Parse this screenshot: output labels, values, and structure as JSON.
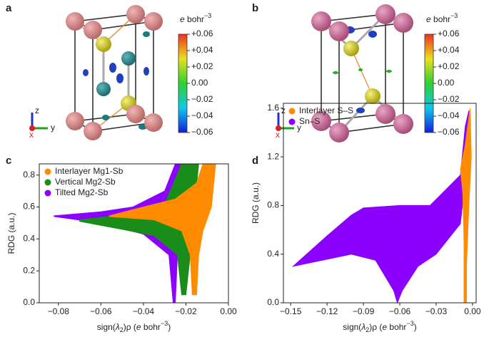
{
  "panels": [
    {
      "label": "a",
      "axes": [
        "z",
        "x",
        "y"
      ],
      "colorbar": {
        "unit_symbol": "e",
        "unit": " bohr",
        "unit_exponent": "−3",
        "lim": [
          -0.06,
          0.06
        ],
        "ticks": [
          {
            "value": 0.06,
            "label": "+0.06"
          },
          {
            "value": 0.04,
            "label": "+0.04"
          },
          {
            "value": 0.02,
            "label": "+0.02"
          },
          {
            "value": 0,
            "label": "0.00"
          },
          {
            "value": -0.02,
            "label": "−0.02"
          },
          {
            "value": -0.04,
            "label": "−0.04"
          },
          {
            "value": -0.06,
            "label": "−0.06"
          }
        ]
      }
    },
    {
      "label": "b",
      "axes": [
        "z",
        "x",
        "y"
      ],
      "colorbar": {
        "unit_symbol": "e",
        "unit": " bohr",
        "unit_exponent": "−3",
        "lim": [
          -0.06,
          0.06
        ],
        "ticks": [
          {
            "value": 0.06,
            "label": "+0.06"
          },
          {
            "value": 0.04,
            "label": "+0.04"
          },
          {
            "value": 0.02,
            "label": "+0.02"
          },
          {
            "value": 0,
            "label": "0.00"
          },
          {
            "value": -0.02,
            "label": "−0.02"
          },
          {
            "value": -0.04,
            "label": "−0.04"
          },
          {
            "value": -0.06,
            "label": "−0.06"
          }
        ]
      }
    }
  ],
  "chart_data": [
    {
      "type": "scatter",
      "panel": "c",
      "xlabel": [
        "sign(",
        "λ",
        "2",
        ")",
        "ρ (",
        "e",
        " bohr",
        "−3",
        ")"
      ],
      "ylabel": "RDG (a.u.)",
      "xlim": [
        -0.089,
        0
      ],
      "ylim": [
        0,
        0.87
      ],
      "xticks": [
        {
          "value": -0.08,
          "label": "−0.08"
        },
        {
          "value": -0.06,
          "label": "−0.06"
        },
        {
          "value": -0.04,
          "label": "−0.04"
        },
        {
          "value": -0.02,
          "label": "−0.02"
        },
        {
          "value": 0,
          "label": "0.00"
        }
      ],
      "yticks": [
        {
          "value": 0,
          "label": "0.0"
        },
        {
          "value": 0.2,
          "label": "0.2"
        },
        {
          "value": 0.4,
          "label": "0.4"
        },
        {
          "value": 0.6,
          "label": "0.6"
        },
        {
          "value": 0.8,
          "label": "0.8"
        }
      ],
      "legend": "upper left",
      "series": [
        {
          "name": "Tilted Mg2-Sb",
          "color": "#8b00ff",
          "x": [
            -0.082,
            -0.06,
            -0.045,
            -0.03,
            -0.025,
            -0.02,
            -0.022,
            -0.024,
            -0.025,
            -0.026,
            -0.028,
            -0.04,
            -0.06,
            -0.082
          ],
          "y": [
            0.545,
            0.57,
            0.6,
            0.7,
            0.87,
            0.87,
            0.6,
            0.3,
            0,
            0,
            0.3,
            0.43,
            0.5,
            0.54
          ]
        },
        {
          "name": "Vertical Mg2-Sb",
          "color": "#1a8c1a",
          "x": [
            -0.07,
            -0.05,
            -0.03,
            -0.022,
            -0.014,
            -0.016,
            -0.018,
            -0.02,
            -0.022,
            -0.024,
            -0.035,
            -0.05,
            -0.07
          ],
          "y": [
            0.52,
            0.55,
            0.62,
            0.87,
            0.87,
            0.6,
            0.3,
            0.05,
            0.05,
            0.3,
            0.42,
            0.46,
            0.51
          ]
        },
        {
          "name": "Interlayer Mg1-Sb",
          "color": "#ff8c00",
          "x": [
            -0.056,
            -0.04,
            -0.025,
            -0.015,
            -0.012,
            -0.006,
            -0.008,
            -0.012,
            -0.014,
            -0.015,
            -0.017,
            -0.018,
            -0.022,
            -0.035,
            -0.056
          ],
          "y": [
            0.545,
            0.6,
            0.65,
            0.75,
            0.87,
            0.87,
            0.6,
            0.45,
            0.3,
            0.05,
            0.05,
            0.3,
            0.45,
            0.52,
            0.54
          ]
        }
      ]
    },
    {
      "type": "scatter",
      "panel": "d",
      "xlabel": [
        "sign(",
        "λ",
        "2",
        ")",
        "ρ (",
        "e",
        " bohr",
        "−3",
        ")"
      ],
      "ylabel": "RDG (a.u.)",
      "xlim": [
        -0.156,
        0.003
      ],
      "ylim": [
        0,
        1.64
      ],
      "xticks": [
        {
          "value": -0.15,
          "label": "−0.15"
        },
        {
          "value": -0.12,
          "label": "−0.12"
        },
        {
          "value": -0.09,
          "label": "−0.09"
        },
        {
          "value": -0.06,
          "label": "−0.06"
        },
        {
          "value": -0.03,
          "label": "−0.03"
        },
        {
          "value": 0,
          "label": "0.00"
        }
      ],
      "yticks": [
        {
          "value": 0,
          "label": "0.0"
        },
        {
          "value": 0.4,
          "label": "0.4"
        },
        {
          "value": 0.8,
          "label": "0.8"
        },
        {
          "value": 1.2,
          "label": "1.2"
        },
        {
          "value": 1.6,
          "label": "1.6"
        }
      ],
      "legend": "upper left",
      "series": [
        {
          "name": "Sn–S",
          "color": "#8b00ff",
          "x": [
            -0.148,
            -0.12,
            -0.1,
            -0.09,
            -0.06,
            -0.035,
            -0.025,
            -0.01,
            -0.006,
            -0.003,
            -0.004,
            -0.01,
            -0.03,
            -0.045,
            -0.058,
            -0.062,
            -0.065,
            -0.08,
            -0.1,
            -0.148
          ],
          "y": [
            0.3,
            0.55,
            0.72,
            0.78,
            0.8,
            0.8,
            0.9,
            1.05,
            1.45,
            1.58,
            1.2,
            0.65,
            0.4,
            0.3,
            0.1,
            0,
            0.1,
            0.35,
            0.4,
            0.3
          ]
        },
        {
          "name": "Interlayer S–S",
          "color": "#ff8c00",
          "x": [
            -0.01,
            -0.006,
            -0.002,
            -0.001,
            -0.003,
            -0.005,
            -0.005,
            -0.007,
            -0.007,
            -0.008
          ],
          "y": [
            1.1,
            1.3,
            1.6,
            1.2,
            0.8,
            0.3,
            0,
            0,
            0.5,
            0.9
          ]
        }
      ]
    }
  ]
}
